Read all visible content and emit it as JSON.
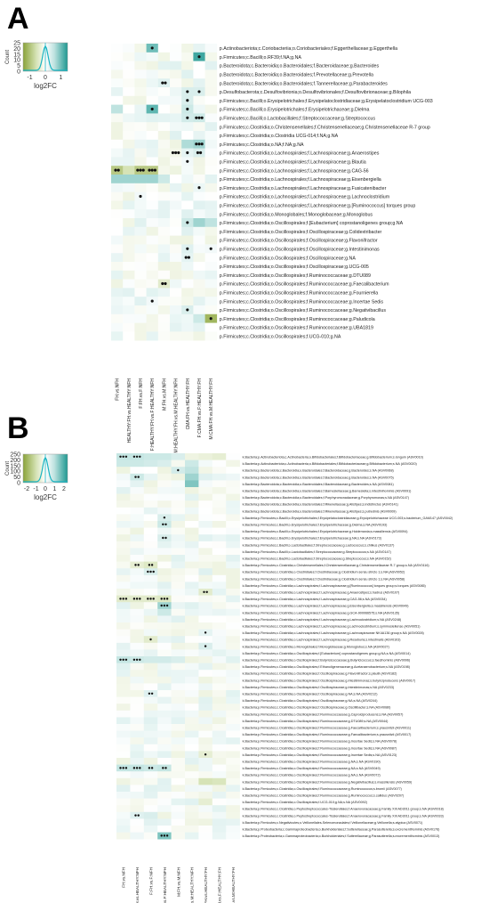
{
  "panels": [
    {
      "letter": "A",
      "legend": {
        "title": "Count",
        "xlabel": "log2FC",
        "yticks": [
          "25",
          "20",
          "15",
          "10",
          "5",
          "0"
        ],
        "xticks": [
          "-1",
          "0",
          "1"
        ]
      },
      "comparisons": [
        "FH.vs.NFH",
        "HEALTHY:FH.vs.HEALTHY:NFH",
        "F:FH.vs.F:NFH",
        "F:HEALTHY:FH.vs.F:HEALTHY:NFH",
        "M:FH.vs.M:NFH",
        "M:HEALTHY:FH.vs.M:HEALTHY:NFH",
        "CMA:FH.vs.HEALTHY:FH",
        "F:CMA:FH.vs.F:HEALTHY:FH",
        "M:CMA:FH.vs.M:HEALTHY:FH"
      ],
      "taxa": [
        "p.Actinobacteriota;c.Coriobacteriia;o.Coriobacteriales;f.Eggerthellaceae;g.Eggerthella",
        "p.Firmicutes;c.Bacilli;o.RF39;f.NA;g.NA",
        "p.Bacteroidota;c.Bacteroidia;o.Bacteroidales;f.Bacteroidaceae;g.Bacteroides",
        "p.Bacteroidota;c.Bacteroidia;o.Bacteroidales;f.Prevotellaceae;g.Prevotella",
        "p.Bacteroidota;c.Bacteroidia;o.Bacteroidales;f.Tannerellaceae;g.Parabacteroides",
        "p.Desulfobacterota;c.Desulfovibrionia;o.Desulfovibrionales;f.Desulfovibrionaceae;g.Bilophila",
        "p.Firmicutes;c.Bacilli;o.Erysipelotrichales;f.Erysipelatoclostridiaceae;g.Erysipelatoclostridium UCG-003",
        "p.Firmicutes;c.Bacilli;o.Erysipelotrichales;f.Erysipelotrichaceae;g.Dielma",
        "p.Firmicutes;c.Bacilli;o.Lactobacillales;f.Streptococcaceae;g.Streptococcus",
        "p.Firmicutes;c.Clostridia;o.Christensenellales;f.Christensenellaceae;g.Christensenellaceae R-7 group",
        "p.Firmicutes;c.Clostridia;o.Clostridia UCG-014;f.NA;g.NA",
        "p.Firmicutes;c.Clostridia;o.NA;f.NA;g.NA",
        "p.Firmicutes;c.Clostridia;o.Lachnospirales;f.Lachnospiraceae;g.Anaerostipes",
        "p.Firmicutes;c.Clostridia;o.Lachnospirales;f.Lachnospiraceae;g.Blautia",
        "p.Firmicutes;c.Clostridia;o.Lachnospirales;f.Lachnospiraceae;g.CAG-56",
        "p.Firmicutes;c.Clostridia;o.Lachnospirales;f.Lachnospiraceae;g.Eisenbergiella",
        "p.Firmicutes;c.Clostridia;o.Lachnospirales;f.Lachnospiraceae;g.Fusicatenibacter",
        "p.Firmicutes;c.Clostridia;o.Lachnospirales;f.Lachnospiraceae;g.Lachnoclostridium",
        "p.Firmicutes;c.Clostridia;o.Lachnospirales;f.Lachnospiraceae;g.[Ruminococcus] torques group",
        "p.Firmicutes;c.Clostridia;o.Monoglobales;f.Monoglobaceae;g.Monoglobus",
        "p.Firmicutes;c.Clostridia;o.Oscillospirales;f.[Eubacterium] coprostanoligenes group;g.NA",
        "p.Firmicutes;c.Clostridia;o.Oscillospirales;f.Oscillospiraceae;g.Colidextribacter",
        "p.Firmicutes;c.Clostridia;o.Oscillospirales;f.Oscillospiraceae;g.Flavonifractor",
        "p.Firmicutes;c.Clostridia;o.Oscillospirales;f.Oscillospiraceae;g.Intestinimonas",
        "p.Firmicutes;c.Clostridia;o.Oscillospirales;f.Oscillospiraceae;g.NA",
        "p.Firmicutes;c.Clostridia;o.Oscillospirales;f.Oscillospiraceae;g.UCG-005",
        "p.Firmicutes;c.Clostridia;o.Oscillospirales;f.Ruminococcaceae;g.DTU089",
        "p.Firmicutes;c.Clostridia;o.Oscillospirales;f.Ruminococcaceae;g.Faecalibacterium",
        "p.Firmicutes;c.Clostridia;o.Oscillospirales;f.Ruminococcaceae;g.Fournierella",
        "p.Firmicutes;c.Clostridia;o.Oscillospirales;f.Ruminococcaceae;g.Incertae Sedis",
        "p.Firmicutes;c.Clostridia;o.Oscillospirales;f.Ruminococcaceae;g.Negativibacillus",
        "p.Firmicutes;c.Clostridia;o.Oscillospirales;f.Ruminococcaceae;g.Paludicola",
        "p.Firmicutes;c.Clostridia;o.Oscillospirales;f.Ruminococcaceae;g.UBA1819",
        "p.Firmicutes;c.Clostridia;o.Oscillospirales;f.UCG-010;g.NA"
      ]
    },
    {
      "letter": "B",
      "legend": {
        "title": "Count",
        "xlabel": "log2FC",
        "yticks": [
          "250",
          "200",
          "150",
          "100",
          "50",
          "0"
        ],
        "xticks": [
          "-2",
          "-1",
          "0",
          "1",
          "2"
        ]
      },
      "comparisons": [
        "FH.vs.NFH",
        "HEALTHY:FH.vs.HEALTHY:NFH",
        "F:FH.vs.F:NFH",
        "F:HEALTHY:FH.vs.F:HEALTHY:NFH",
        "M:FH.vs.M:NFH",
        "M:HEALTHY:FH.vs.M:HEALTHY:NFH",
        "CMA:FH.vs.HEALTHY:FH",
        "F:CMA:FH.vs.F:HEALTHY:FH",
        "M:CMA:FH.vs.M:HEALTHY:FH"
      ],
      "taxa": [
        "k.Bacteria;p.Actinobacteriota;c.Actinobacteria;o.Bifidobacteriales;f.Bifidobacteriaceae;g.Bifidobacterium;s.longum (ASV0010)",
        "k.Bacteria;p.Actinobacteriota;c.Actinobacteria;o.Bifidobacteriales;f.Bifidobacteriaceae;g.Bifidobacterium;s.NA (ASV0020)",
        "k.Bacteria;p.Bacteroidota;c.Bacteroidia;o.Bacteroidales;f.Bacteroidaceae;g.Bacteroides;s.NA (ASV0068)",
        "k.Bacteria;p.Bacteroidota;c.Bacteroidia;o.Bacteroidales;f.Bacteroidaceae;g.Bacteroides;s.NA (ASV0075)",
        "k.Bacteria;p.Bacteroidota;c.Bacteroidia;o.Bacteroidales;f.Bacteroidaceae;g.Bacteroides;s.NA (ASV0081)",
        "k.Bacteria;p.Bacteroidota;c.Bacteroidia;o.Bacteroidales;f.Barnesiellaceae;g.Barnesiella;s.intestinihominis (ASV0091)",
        "k.Bacteria;p.Bacteroidota;c.Bacteroidia;o.Bacteroidales;f.Porphyromonadaceae;g.Porphyromonas;s.NA (ASV0147)",
        "k.Bacteria;p.Bacteroidota;c.Bacteroidia;o.Bacteroidales;f.Rikenellaceae;g.Alistipes;s.indistinctus (ASV0141)",
        "k.Bacteria;p.Bacteroidota;c.Bacteroidia;o.Bacteroidales;f.Rikenellaceae;g.Alistipes;s.putredinis (ASV0009)",
        "k.Bacteria;p.Firmicutes;c.Bacilli;o.Erysipelotrichales;f.Erysipelatoclostridiaceae;g.Erysipelotrichaceae UCG-003;s.bacterium_GAM147 (ASV0042)",
        "k.Bacteria;p.Firmicutes;c.Bacilli;o.Erysipelotrichales;f.Erysipelotrichaceae;g.Dielma;s.NA (ASV0193)",
        "k.Bacteria;p.Firmicutes;c.Bacilli;o.Erysipelotrichales;f.Erysipelotrichaceae;g.Holdemania;s.massiliensis (ASV0094)",
        "k.Bacteria;p.Firmicutes;c.Bacilli;o.Erysipelotrichales;f.Erysipelotrichaceae;g.NA;s.NA (ASV0173)",
        "k.Bacteria;p.Firmicutes;c.Bacilli;o.Lactobacillales;f.Streptococcaceae;g.Lactococcus;s.chiikus (ASV0137)",
        "k.Bacteria;p.Firmicutes;c.Bacilli;o.Lactobacillales;f.Streptococcaceae;g.Streptococcus;s.NA (ASV0147)",
        "k.Bacteria;p.Firmicutes;c.Bacilli;o.Lactobacillales;f.Streptococcaceae;g.Streptococcus;s.NA (ASV0152)",
        "k.Bacteria;p.Firmicutes;c.Clostridia;o.Christensenellales;f.Christensenellaceae;g.Christensenellaceae R-7 group;s.NA (ASV0116)",
        "k.Bacteria;p.Firmicutes;c.Clostridia;o.Clostridiales;f.Clostridiaceae;g.Clostridium sensu stricto 1;s.NA (ASV0052)",
        "k.Bacteria;p.Firmicutes;c.Clostridia;o.Clostridiales;f.Clostridiaceae;g.Clostridium sensu stricto 1;s.NA (ASV0058)",
        "k.Bacteria;p.Firmicutes;c.Clostridia;o.Lachnospirales;f.Lachnospiraceae;g.[Ruminococcus] torques group;s.torques (ASV0085)",
        "k.Bacteria;p.Firmicutes;c.Clostridia;o.Lachnospirales;f.Lachnospiraceae;g.Anaerostipes;s.hadrus (ASV0107)",
        "k.Bacteria;p.Firmicutes;c.Clostridia;o.Lachnospirales;f.Lachnospiraceae;g.CAG-56;s.NA (ASV0034)",
        "k.Bacteria;p.Firmicutes;c.Clostridia;o.Lachnospirales;f.Lachnospiraceae;g.Eisenbergiella;s.massiliensis (ASV0049)",
        "k.Bacteria;p.Firmicutes;c.Clostridia;o.Lachnospirales;f.Lachnospiraceae;g.GCA-900066575;s.NA (ASV0135)",
        "k.Bacteria;p.Firmicutes;c.Clostridia;o.Lachnospirales;f.Lachnospiraceae;g.Lachnoclostridium;s.NA (ASV0248)",
        "k.Bacteria;p.Firmicutes;c.Clostridia;o.Lachnospirales;f.Lachnospiraceae;g.Lachnoclostridium;s.symmosiellense (ASV0051)",
        "k.Bacteria;p.Firmicutes;c.Clostridia;o.Lachnospirales;f.Lachnospiraceae;g.Lachnospiraceae NK4A136 group;s.NA (ASV0028)",
        "k.Bacteria;p.Firmicutes;c.Clostridia;o.Lachnospirales;f.Lachnospiraceae;g.Roseburia;s.intestinalis (ASV0103)",
        "k.Bacteria;p.Firmicutes;c.Clostridia;o.Monoglobales;f.Monoglobaceae;g.Monoglobus;s.NA (ASV0027)",
        "k.Bacteria;p.Firmicutes;c.Clostridia;o.Oscillospirales;f.[Eubacterium] coprostanoligenes group;g.NA;s.NA (ASV0014)",
        "k.Bacteria;p.Firmicutes;c.Clostridia;o.Oscillospirales;f.Butyricicoccaceae;g.Butyricicoccus;s.faecihominis (ASV0096)",
        "k.Bacteria;p.Firmicutes;c.Clostridia;o.Oscillospirales;f.Ethanoligenenaceae;g.Acetanaerobacterium;s.NA (ASV0198)",
        "k.Bacteria;p.Firmicutes;c.Clostridia;o.Oscillospirales;f.Oscillospiraceae;g.Flavonifractor;s.plautii (ASV0182)",
        "k.Bacteria;p.Firmicutes;c.Clostridia;o.Oscillospirales;f.Oscillospiraceae;g.Intestinimonas;s.butyriciproducens (ASV0017)",
        "k.Bacteria;p.Firmicutes;c.Clostridia;o.Oscillospirales;f.Oscillospiraceae;g.Intestinimonas;s.NA (ASV0233)",
        "k.Bacteria;p.Firmicutes;c.Clostridia;o.Oscillospirales;f.Oscillospiraceae;g.NA;s.NA (ASV0212)",
        "k.Bacteria;p.Firmicutes;c.Clostridia;o.Oscillospirales;f.Oscillospiraceae;g.NA;s.NA (ASV0244)",
        "k.Bacteria;p.Firmicutes;c.Clostridia;o.Oscillospirales;f.Oscillospiraceae;g.Oscillibacter;s.NA (ASV0080)",
        "k.Bacteria;p.Firmicutes;c.Clostridia;o.Oscillospirales;f.Ruminococcaceae;g.Caproiciproducens;s.NA (ASV0057)",
        "k.Bacteria;p.Firmicutes;c.Clostridia;o.Oscillospirales;f.Ruminococcaceae;g.DTU089;s.NA (ASV0044)",
        "k.Bacteria;p.Firmicutes;c.Clostridia;o.Oscillospirales;f.Ruminococcaceae;g.Faecalibacterium;s.prausnitzii (ASV0011)",
        "k.Bacteria;p.Firmicutes;c.Clostridia;o.Oscillospirales;f.Ruminococcaceae;g.Faecalibacterium;s.prausnitzii (ASV0017)",
        "k.Bacteria;p.Firmicutes;c.Clostridia;o.Oscillospirales;f.Ruminococcaceae;g.Incertae Sedis;s.NA (ASV0078)",
        "k.Bacteria;p.Firmicutes;c.Clostridia;o.Oscillospirales;f.Ruminococcaceae;g.Incertae Sedis;s.NA (ASV0087)",
        "k.Bacteria;p.Firmicutes;c.Clostridia;o.Oscillospirales;f.Ruminococcaceae;g.Incertae Sedis;s.NA (ASV0123)",
        "k.Bacteria;p.Firmicutes;c.Clostridia;o.Oscillospirales;f.Ruminococcaceae;g.NA;s.NA (ASV0190)",
        "k.Bacteria;p.Firmicutes;c.Clostridia;o.Oscillospirales;f.Ruminococcaceae;g.NA;s.NA (ASV0049)",
        "k.Bacteria;p.Firmicutes;c.Clostridia;o.Oscillospirales;f.Ruminococcaceae;g.NA;s.NA (ASV0072)",
        "k.Bacteria;p.Firmicutes;c.Clostridia;o.Oscillospirales;f.Ruminococcaceae;g.Negativibacillus;s.massiliensis (ASV0059)",
        "k.Bacteria;p.Firmicutes;c.Clostridia;o.Oscillospirales;f.Ruminococcaceae;g.Ruminococcus;s.bromii (ASV0077)",
        "k.Bacteria;p.Firmicutes;c.Clostridia;o.Oscillospirales;f.Ruminococcaceae;g.Ruminococcus;s.callidus (ASV0207)",
        "k.Bacteria;p.Firmicutes;c.Clostridia;o.Oscillospirales;f.UCG-010;g.NA;s.NA (ASV0092)",
        "k.Bacteria;p.Firmicutes;c.Clostridia;o.Peptostreptococcales-Tissierellales;f.Anaerovoracaceae;g.Family XIII AD3011 group;s.NA (ASV0018)",
        "k.Bacteria;p.Firmicutes;c.Clostridia;o.Peptostreptococcales-Tissierellales;f.Anaerovoracaceae;g.Family XIII AD3011 group;s.NA (ASV0033)",
        "k.Bacteria;p.Firmicutes;c.Negativicutes;o.Veillonellales-Selenomonadales;f.Veillonellaceae;g.Veillonella;s.atypica (ASV0071)",
        "k.Bacteria;p.Proteobacteria;c.Gammaproteobacteria;o.Burkholderiales;f.Sutterellaceae;g.Parasutterella;s.excrementihominis (ASV0176)",
        "k.Bacteria;p.Proteobacteria;c.Gammaproteobacteria;o.Burkholderiales;f.Sutterellaceae;g.Parasutterella;s.excrementihominis (ASV0013)"
      ]
    }
  ],
  "colors": {
    "neg_dark": "#8aa33a",
    "neg_light": "#d6e3b6",
    "white": "#ffffff",
    "pos_light": "#bfe3e0",
    "pos_dark": "#1f9891",
    "dot": "#111111"
  }
}
